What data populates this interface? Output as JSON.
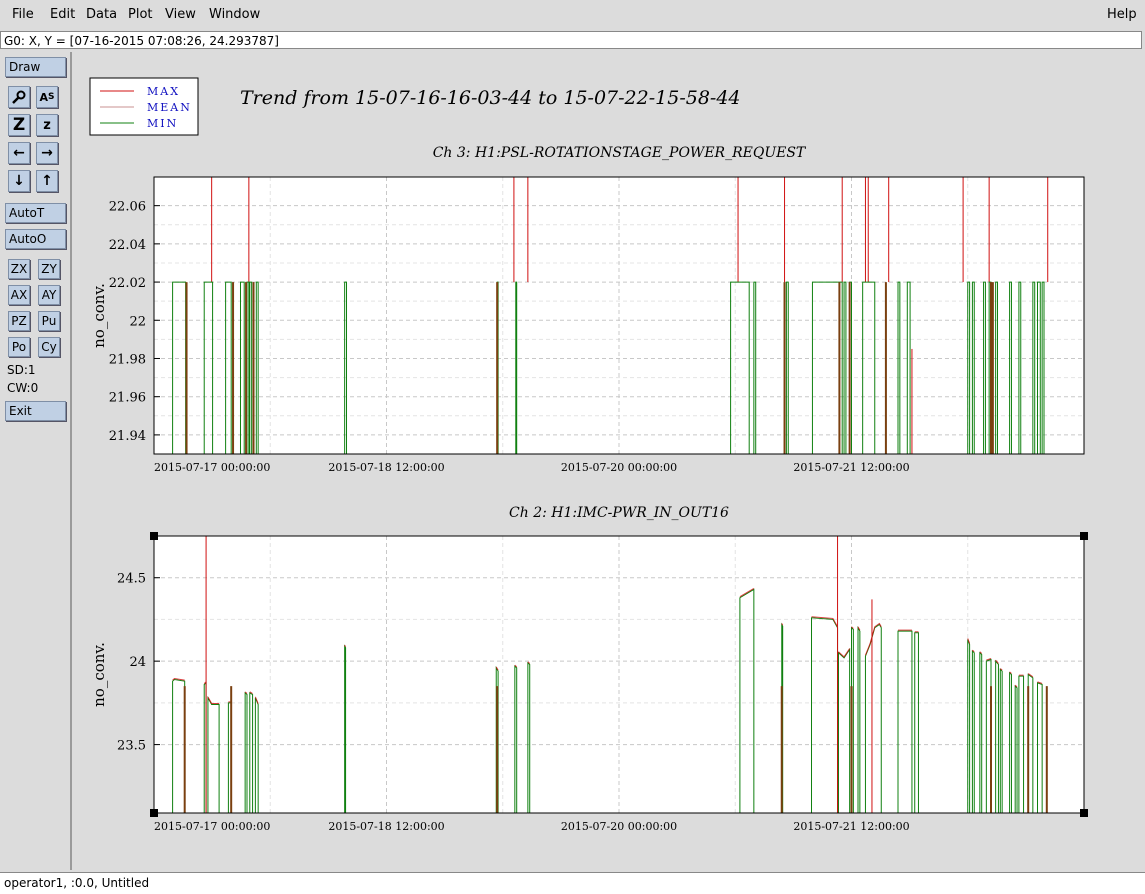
{
  "menubar": {
    "items": [
      "File",
      "Edit",
      "Data",
      "Plot",
      "View",
      "Window"
    ],
    "help": "Help"
  },
  "status_top": "G0: X, Y = [07-16-2015 07:08:26, 24.293787]",
  "toolbar": {
    "draw": "Draw",
    "autot": "AutoT",
    "autoo": "AutoO",
    "small_buttons": [
      "ZX",
      "ZY",
      "AX",
      "AY",
      "PZ",
      "Pu",
      "Po",
      "Cy"
    ],
    "sd": "SD:1",
    "cw": "CW:0",
    "exit": "Exit"
  },
  "legend": {
    "entries": [
      {
        "label": "MAX",
        "color": "#d01010"
      },
      {
        "label": "MEAN",
        "color": "#c89090"
      },
      {
        "label": "MIN",
        "color": "#108010"
      }
    ]
  },
  "main_title": "Trend from 15-07-16-16-03-44 to 15-07-22-15-58-44",
  "status_bottom": "operator1, :0.0, Untitled",
  "chart_data": [
    {
      "type": "line",
      "title": "Ch 3: H1:PSL-ROTATIONSTAGE_POWER_REQUEST",
      "ylabel": "no_conv.",
      "ylim": [
        21.93,
        22.075
      ],
      "yticks": [
        21.94,
        21.96,
        21.98,
        22,
        22.02,
        22.04,
        22.06
      ],
      "ytick_labels": [
        "21.94",
        "21.96",
        "21.98",
        "22",
        "22.02",
        "22.04",
        "22.06"
      ],
      "xticks": [
        "2015-07-17 00:00:00",
        "2015-07-18 12:00:00",
        "2015-07-20 00:00:00",
        "2015-07-21 12:00:00"
      ],
      "grid": true,
      "high_value": 22.02,
      "low_value": 21.93,
      "min_on_segments": [
        [
          0.02,
          0.034
        ],
        [
          0.054,
          0.063
        ],
        [
          0.077,
          0.083
        ],
        [
          0.093,
          0.097
        ],
        [
          0.1,
          0.102
        ],
        [
          0.103,
          0.105
        ],
        [
          0.11,
          0.112
        ],
        [
          0.205,
          0.207
        ],
        [
          0.369,
          0.37
        ],
        [
          0.389,
          0.39
        ],
        [
          0.62,
          0.64
        ],
        [
          0.645,
          0.647
        ],
        [
          0.68,
          0.682
        ],
        [
          0.708,
          0.74
        ],
        [
          0.742,
          0.744
        ],
        [
          0.748,
          0.75
        ],
        [
          0.762,
          0.775
        ],
        [
          0.8,
          0.802
        ],
        [
          0.81,
          0.813
        ],
        [
          0.875,
          0.877
        ],
        [
          0.88,
          0.882
        ],
        [
          0.892,
          0.894
        ],
        [
          0.898,
          0.9
        ],
        [
          0.905,
          0.907
        ],
        [
          0.92,
          0.922
        ],
        [
          0.93,
          0.932
        ],
        [
          0.945,
          0.947
        ],
        [
          0.95,
          0.953
        ],
        [
          0.955,
          0.957
        ]
      ],
      "max_spikes": [
        0.062,
        0.102,
        0.387,
        0.402,
        0.628,
        0.678,
        0.74,
        0.765,
        0.768,
        0.79,
        0.87,
        0.898,
        0.961
      ],
      "brown_lines": [
        0.035,
        0.085,
        0.099,
        0.107,
        0.369,
        0.678,
        0.737,
        0.748,
        0.787,
        0.9,
        0.902
      ]
    },
    {
      "type": "line",
      "title": "Ch 2: H1:IMC-PWR_IN_OUT16",
      "ylabel": "no_conv.",
      "ylim": [
        23.09,
        24.75
      ],
      "yticks": [
        23.5,
        24,
        24.5
      ],
      "ytick_labels": [
        "23.5",
        "24",
        "24.5"
      ],
      "xticks": [
        "2015-07-17 00:00:00",
        "2015-07-18 12:00:00",
        "2015-07-20 00:00:00",
        "2015-07-21 12:00:00"
      ],
      "grid": true,
      "low_value": 23.09,
      "segments": [
        [
          [
            0.02,
            23.88
          ],
          [
            0.022,
            23.89
          ],
          [
            0.033,
            23.88
          ]
        ],
        [
          [
            0.054,
            23.86
          ],
          [
            0.056,
            23.87
          ]
        ],
        [
          [
            0.058,
            23.78
          ],
          [
            0.062,
            23.74
          ],
          [
            0.07,
            23.74
          ]
        ],
        [
          [
            0.08,
            23.75
          ],
          [
            0.083,
            23.75
          ]
        ],
        [
          [
            0.098,
            23.81
          ],
          [
            0.1,
            23.8
          ]
        ],
        [
          [
            0.103,
            23.81
          ],
          [
            0.106,
            23.8
          ]
        ],
        [
          [
            0.109,
            23.78
          ],
          [
            0.112,
            23.74
          ]
        ],
        [
          [
            0.205,
            24.09
          ],
          [
            0.206,
            24.08
          ]
        ],
        [
          [
            0.368,
            23.96
          ],
          [
            0.37,
            23.94
          ]
        ],
        [
          [
            0.388,
            23.97
          ],
          [
            0.39,
            23.96
          ]
        ],
        [
          [
            0.402,
            23.99
          ],
          [
            0.404,
            23.98
          ]
        ],
        [
          [
            0.63,
            24.38
          ],
          [
            0.645,
            24.43
          ]
        ],
        [
          [
            0.675,
            24.22
          ],
          [
            0.676,
            24.21
          ]
        ],
        [
          [
            0.707,
            24.26
          ],
          [
            0.73,
            24.25
          ],
          [
            0.735,
            24.2
          ]
        ],
        [
          [
            0.736,
            24.05
          ],
          [
            0.742,
            24.02
          ],
          [
            0.748,
            24.07
          ]
        ],
        [
          [
            0.75,
            24.2
          ],
          [
            0.752,
            24.19
          ]
        ],
        [
          [
            0.757,
            24.2
          ],
          [
            0.759,
            24.18
          ]
        ],
        [
          [
            0.765,
            24.03
          ],
          [
            0.77,
            24.1
          ],
          [
            0.775,
            24.2
          ],
          [
            0.78,
            24.22
          ],
          [
            0.782,
            24.2
          ]
        ],
        [
          [
            0.8,
            24.18
          ],
          [
            0.815,
            24.18
          ]
        ],
        [
          [
            0.818,
            24.17
          ],
          [
            0.822,
            24.17
          ]
        ],
        [
          [
            0.875,
            24.13
          ],
          [
            0.877,
            24.1
          ]
        ],
        [
          [
            0.88,
            24.06
          ],
          [
            0.882,
            24.05
          ]
        ],
        [
          [
            0.888,
            24.05
          ],
          [
            0.89,
            24.04
          ]
        ],
        [
          [
            0.895,
            24.0
          ],
          [
            0.9,
            24.01
          ]
        ],
        [
          [
            0.905,
            24.0
          ],
          [
            0.908,
            23.98
          ]
        ],
        [
          [
            0.91,
            23.95
          ],
          [
            0.912,
            23.94
          ]
        ],
        [
          [
            0.92,
            23.93
          ],
          [
            0.922,
            23.92
          ]
        ],
        [
          [
            0.926,
            23.85
          ],
          [
            0.928,
            23.84
          ]
        ],
        [
          [
            0.93,
            23.91
          ],
          [
            0.935,
            23.91
          ]
        ],
        [
          [
            0.94,
            23.92
          ],
          [
            0.945,
            23.9
          ]
        ],
        [
          [
            0.95,
            23.87
          ],
          [
            0.955,
            23.86
          ]
        ]
      ],
      "max_spikes": [
        [
          0.056,
          24.75
        ],
        [
          0.735,
          24.75
        ],
        [
          0.772,
          24.37
        ]
      ],
      "brown_lines": [
        0.033,
        0.083,
        0.369,
        0.675,
        0.75,
        0.9,
        0.94,
        0.96
      ]
    }
  ]
}
